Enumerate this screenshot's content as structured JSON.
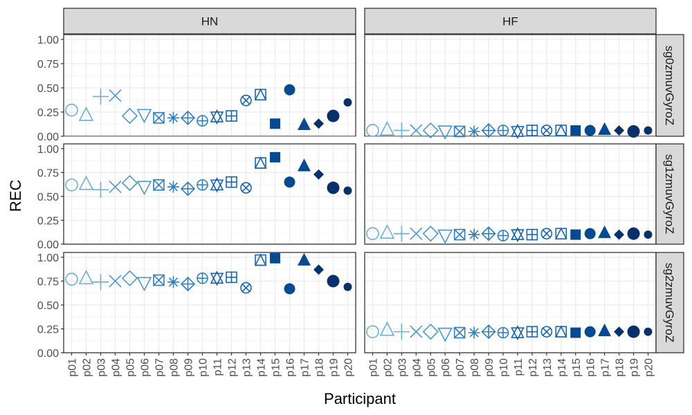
{
  "chart_data": {
    "type": "scatter",
    "xlabel": "Participant",
    "ylabel": "REC",
    "ylim": [
      0,
      1.05
    ],
    "yticks": [
      "0.00",
      "0.25",
      "0.50",
      "0.75",
      "1.00"
    ],
    "grid": true,
    "legend": "none",
    "categories": [
      "p01",
      "p02",
      "p03",
      "p04",
      "p05",
      "p06",
      "p07",
      "p08",
      "p09",
      "p10",
      "p11",
      "p12",
      "p13",
      "p14",
      "p15",
      "p16",
      "p17",
      "p18",
      "p19",
      "p20"
    ],
    "col_facets": [
      "HN",
      "HF"
    ],
    "row_facets": [
      "sg0zmuvGyroZ",
      "sg1zmuvGyroZ",
      "sg2zmuvGyroZ"
    ],
    "colors": [
      "#6baed6",
      "#6baed6",
      "#6baed6",
      "#4a98c9",
      "#4a98c9",
      "#4a98c9",
      "#2e7ebc",
      "#2e7ebc",
      "#2e7ebc",
      "#2e7ebc",
      "#1664ab",
      "#1664ab",
      "#1664ab",
      "#1664ab",
      "#084a91",
      "#084a91",
      "#084a91",
      "#08306b",
      "#08306b",
      "#08306b"
    ],
    "shapes": [
      "circle-open",
      "triangle-open",
      "plus",
      "cross",
      "diamond-open",
      "triangle-down-open",
      "square-cross",
      "asterisk",
      "diamond-plus",
      "circle-plus",
      "triangles-up-down",
      "square-plus",
      "circle-cross",
      "square-triangle",
      "square",
      "circle",
      "triangle",
      "diamond",
      "circle",
      "circle-small"
    ],
    "panels": [
      {
        "row": "sg0zmuvGyroZ",
        "col": "HN",
        "values": [
          0.27,
          0.22,
          0.41,
          0.42,
          0.21,
          0.22,
          0.19,
          0.19,
          0.19,
          0.16,
          0.2,
          0.21,
          0.37,
          0.43,
          0.13,
          0.48,
          0.12,
          0.13,
          0.21,
          0.35
        ]
      },
      {
        "row": "sg0zmuvGyroZ",
        "col": "HF",
        "values": [
          0.06,
          0.07,
          0.06,
          0.06,
          0.06,
          0.05,
          0.05,
          0.05,
          0.06,
          0.06,
          0.05,
          0.06,
          0.06,
          0.06,
          0.06,
          0.06,
          0.07,
          0.06,
          0.05,
          0.06
        ]
      },
      {
        "row": "sg1zmuvGyroZ",
        "col": "HN",
        "values": [
          0.62,
          0.63,
          0.57,
          0.6,
          0.64,
          0.6,
          0.62,
          0.6,
          0.58,
          0.62,
          0.62,
          0.65,
          0.59,
          0.85,
          0.91,
          0.65,
          0.82,
          0.73,
          0.59,
          0.56
        ]
      },
      {
        "row": "sg1zmuvGyroZ",
        "col": "HF",
        "values": [
          0.11,
          0.12,
          0.11,
          0.11,
          0.11,
          0.09,
          0.1,
          0.1,
          0.11,
          0.09,
          0.1,
          0.1,
          0.11,
          0.11,
          0.1,
          0.11,
          0.12,
          0.1,
          0.11,
          0.1
        ]
      },
      {
        "row": "sg2zmuvGyroZ",
        "col": "HN",
        "values": [
          0.77,
          0.78,
          0.74,
          0.75,
          0.78,
          0.73,
          0.76,
          0.74,
          0.72,
          0.78,
          0.78,
          0.79,
          0.68,
          0.97,
          0.99,
          0.67,
          0.97,
          0.87,
          0.75,
          0.69
        ]
      },
      {
        "row": "sg2zmuvGyroZ",
        "col": "HF",
        "values": [
          0.22,
          0.24,
          0.22,
          0.22,
          0.22,
          0.2,
          0.21,
          0.21,
          0.22,
          0.21,
          0.21,
          0.22,
          0.22,
          0.22,
          0.21,
          0.22,
          0.23,
          0.22,
          0.22,
          0.22
        ]
      }
    ]
  }
}
